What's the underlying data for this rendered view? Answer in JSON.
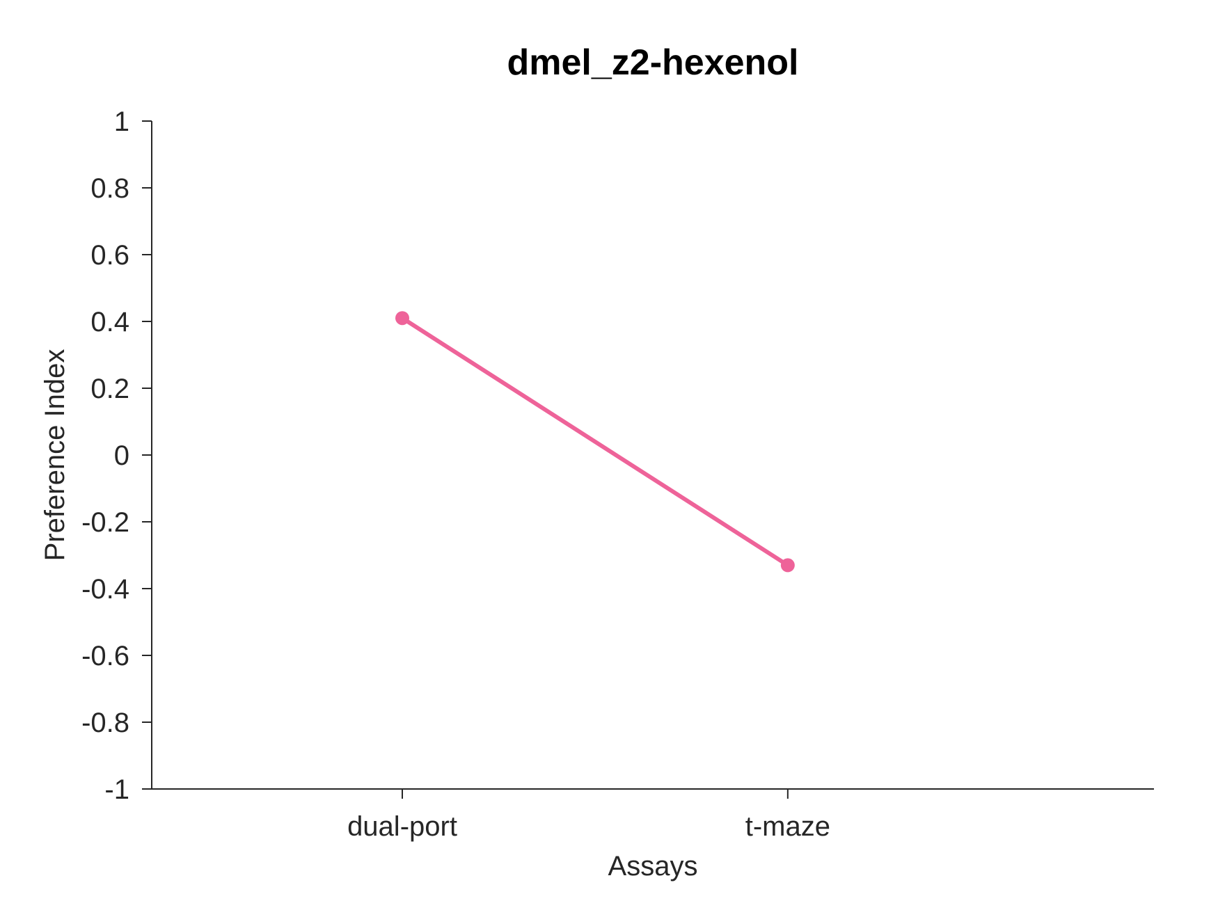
{
  "chart_data": {
    "type": "line",
    "title": "dmel_z2-hexenol",
    "xlabel": "Assays",
    "ylabel": "Preference Index",
    "categories": [
      "dual-port",
      "t-maze"
    ],
    "series": [
      {
        "values": [
          0.41,
          -0.33
        ],
        "color": "#EE6399"
      }
    ],
    "ylim": [
      -1,
      1
    ],
    "yticks": [
      1,
      0.8,
      0.6,
      0.4,
      0.2,
      0,
      -0.2,
      -0.4,
      -0.6,
      -0.8,
      -1
    ],
    "ytick_labels": [
      "1",
      "0.8",
      "0.6",
      "0.4",
      "0.2",
      "0",
      "-0.2",
      "-0.4",
      "-0.6",
      "-0.8",
      "-1"
    ],
    "grid": false,
    "legend": "none",
    "colors": {
      "axis": "#262626",
      "title": "#000000",
      "series": "#EE6399"
    }
  }
}
